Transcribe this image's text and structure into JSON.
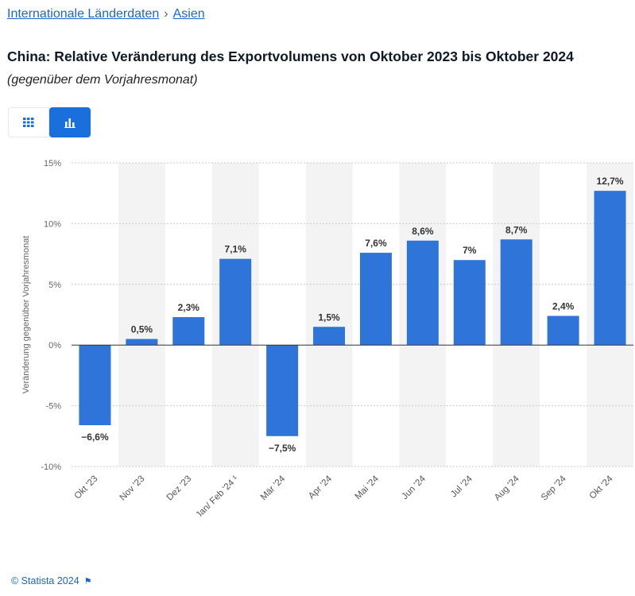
{
  "breadcrumb": {
    "item1": "Internationale Länderdaten",
    "separator": "›",
    "item2": "Asien"
  },
  "title": "China: Relative Veränderung des Exportvolumens von Oktober 2023 bis Oktober 2024",
  "subtitle": "(gegenüber dem Vorjahresmonat)",
  "view_toggle": {
    "table_icon": "grid-icon",
    "chart_icon": "bar-chart-icon",
    "active": "chart"
  },
  "footer": {
    "copyright": "© Statista 2024",
    "flag_icon": "flag-icon"
  },
  "colors": {
    "bar": "#2f74d9",
    "accent": "#1a6fdc",
    "link": "#1a66cc",
    "band": "#f3f3f3"
  },
  "chart_data": {
    "type": "bar",
    "categories": [
      "Okt '23",
      "Nov '23",
      "Dez '23",
      "Jan/ Feb '24 ¹",
      "Mär '24",
      "Apr '24",
      "Mai '24",
      "Jun '24",
      "Jul '24",
      "Aug '24",
      "Sep '24",
      "Okt '24"
    ],
    "values": [
      -6.6,
      0.5,
      2.3,
      7.1,
      -7.5,
      1.5,
      7.6,
      8.6,
      7.0,
      8.7,
      2.4,
      12.7
    ],
    "value_labels": [
      "−6,6%",
      "0,5%",
      "2,3%",
      "7,1%",
      "−7,5%",
      "1,5%",
      "7,6%",
      "8,6%",
      "7%",
      "8,7%",
      "2,4%",
      "12,7%"
    ],
    "ylabel": "Veränderung gegenüber Vorjahresmonat",
    "ylim": [
      -10,
      15
    ],
    "yticks": [
      15,
      10,
      5,
      0,
      -5,
      -10
    ],
    "ytick_labels": [
      "15%",
      "10%",
      "5%",
      "0%",
      "-5%",
      "-10%"
    ],
    "grid": true,
    "alternating_bands": true
  }
}
